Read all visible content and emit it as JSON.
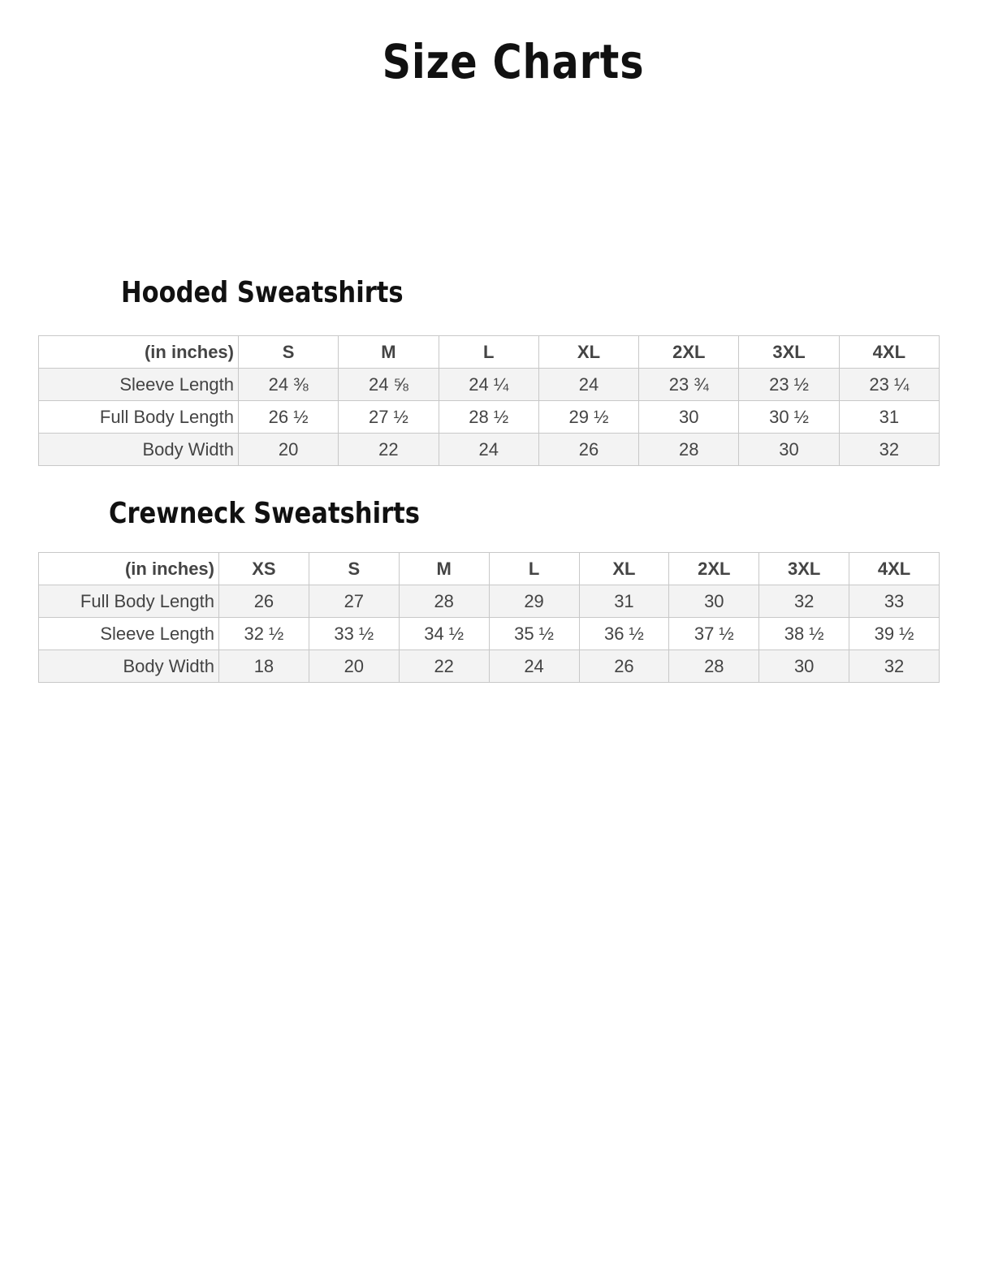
{
  "title": "Size Charts",
  "hooded": {
    "heading": "Hooded Sweatshirts",
    "columns": [
      "(in inches)",
      "S",
      "M",
      "L",
      "XL",
      "2XL",
      "3XL",
      "4XL"
    ],
    "rows": [
      [
        "Sleeve Length",
        "24 ⅜",
        "24 ⅝",
        "24 ¼",
        "24",
        "23 ¾",
        "23 ½",
        "23 ¼"
      ],
      [
        "Full Body Length",
        "26 ½",
        "27 ½",
        "28 ½",
        "29 ½",
        "30",
        "30 ½",
        "31"
      ],
      [
        "Body Width",
        "20",
        "22",
        "24",
        "26",
        "28",
        "30",
        "32"
      ]
    ]
  },
  "crewneck": {
    "heading": "Crewneck Sweatshirts",
    "columns": [
      "(in inches)",
      "XS",
      "S",
      "M",
      "L",
      "XL",
      "2XL",
      "3XL",
      "4XL"
    ],
    "rows": [
      [
        "Full Body Length",
        "26",
        "27",
        "28",
        "29",
        "31",
        "30",
        "32",
        "33"
      ],
      [
        "Sleeve Length",
        "32 ½",
        "33 ½",
        "34 ½",
        "35 ½",
        "36 ½",
        "37 ½",
        "38 ½",
        "39 ½"
      ],
      [
        "Body Width",
        "18",
        "20",
        "22",
        "24",
        "26",
        "28",
        "30",
        "32"
      ]
    ]
  }
}
